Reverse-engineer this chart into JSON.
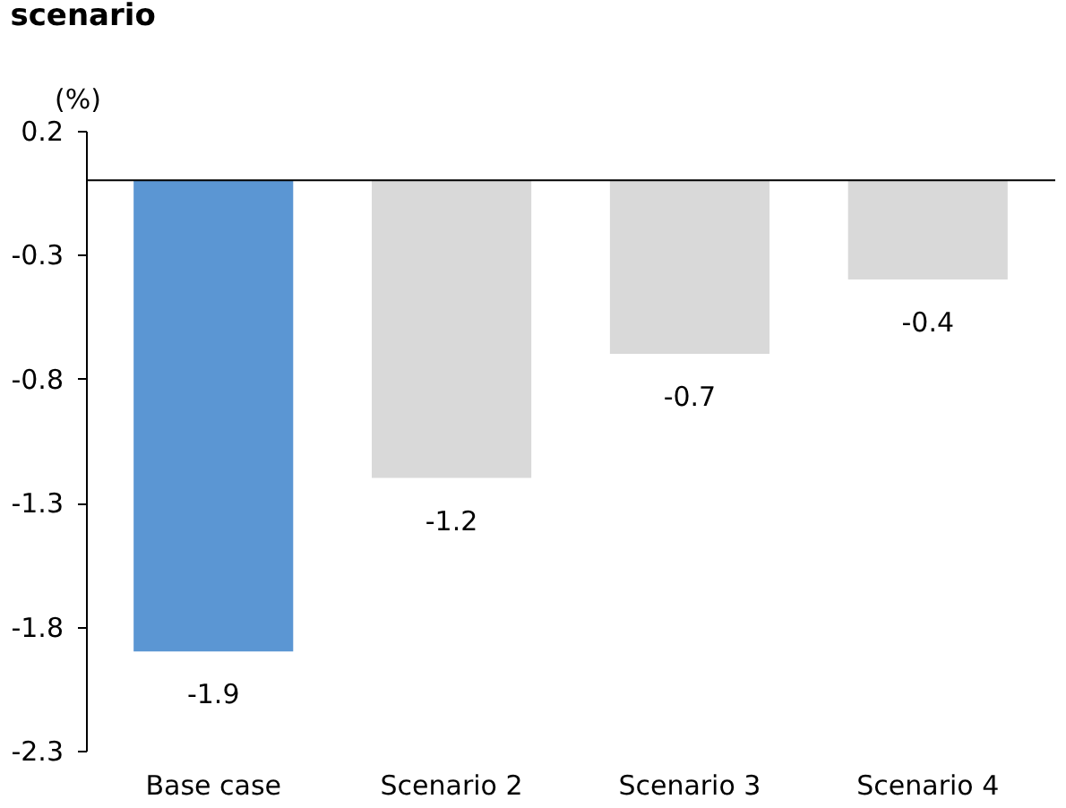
{
  "chart_data": {
    "type": "bar",
    "title": "scenario",
    "ylabel": "(%)",
    "categories": [
      "Base case",
      "Scenario 2",
      "Scenario 3",
      "Scenario 4"
    ],
    "values": [
      -1.9,
      -1.2,
      -0.7,
      -0.4
    ],
    "colors": [
      "#5b96d3",
      "#d9d9d9",
      "#d9d9d9",
      "#d9d9d9"
    ],
    "ylim": [
      -2.3,
      0.2
    ],
    "yticks": [
      0.2,
      -0.3,
      -0.8,
      -1.3,
      -1.8,
      -2.3
    ],
    "ref_lines": [
      {
        "axis": "y",
        "value": 0,
        "color": "#000000"
      }
    ],
    "data_labels": true,
    "grid": false
  }
}
